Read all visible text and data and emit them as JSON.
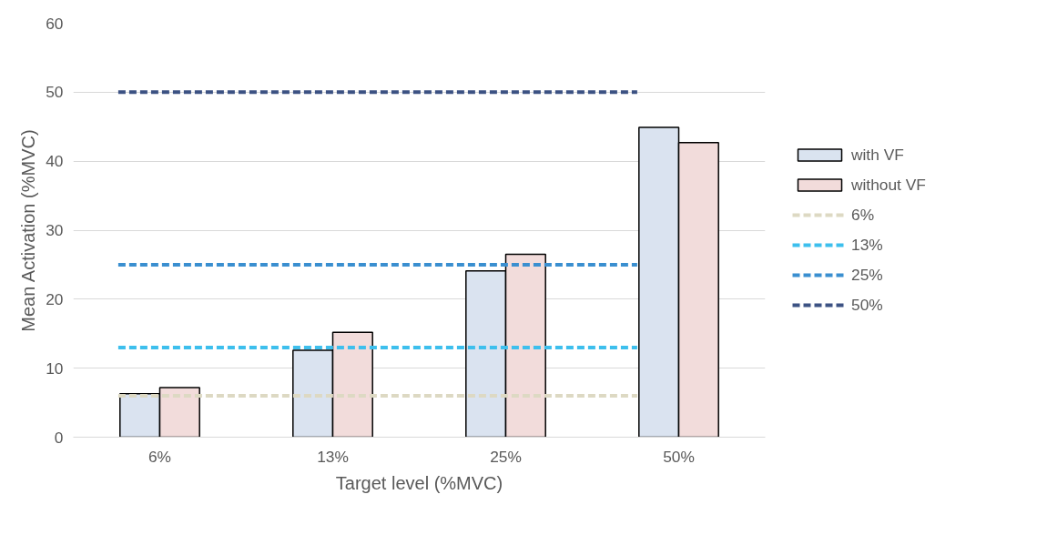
{
  "chart_data": {
    "type": "bar",
    "xlabel": "Target level (%MVC)",
    "ylabel": "Mean Activation (%MVC)",
    "categories": [
      "6%",
      "13%",
      "25%",
      "50%"
    ],
    "series": [
      {
        "name": "with VF",
        "color": "#dae3f0",
        "values": [
          6.3,
          12.6,
          24.1,
          44.9
        ]
      },
      {
        "name": "without VF",
        "color": "#f2dcdb",
        "values": [
          7.2,
          15.2,
          26.5,
          42.7
        ]
      },
      {
        "name": "6%",
        "type": "line",
        "line_style": "dashed",
        "color": "#ddd9c3",
        "values": [
          6,
          6,
          6,
          6
        ]
      },
      {
        "name": "13%",
        "type": "line",
        "line_style": "dashed",
        "color": "#3dbfed",
        "values": [
          13,
          13,
          13,
          13
        ]
      },
      {
        "name": "25%",
        "type": "line",
        "line_style": "dashed",
        "color": "#3a8fd0",
        "values": [
          25,
          25,
          25,
          25
        ]
      },
      {
        "name": "50%",
        "type": "line",
        "line_style": "dashed",
        "color": "#3c5283",
        "values": [
          50,
          50,
          50,
          50
        ]
      }
    ],
    "ylim": [
      0,
      60
    ],
    "yticks": [
      0,
      10,
      20,
      30,
      40,
      50,
      60
    ],
    "grid": "y",
    "legend": "right",
    "marker": "none"
  }
}
